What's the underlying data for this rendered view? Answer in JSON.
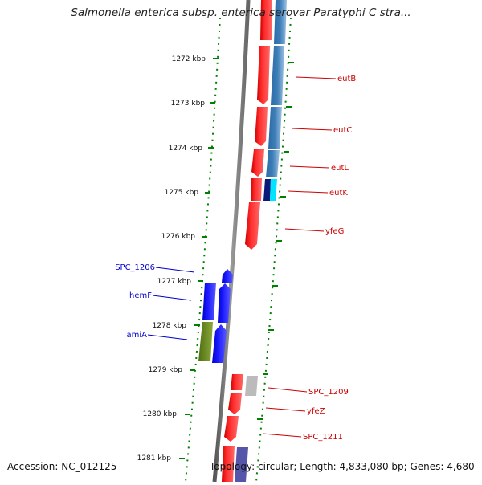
{
  "title": "Salmonella enterica subsp. enterica serovar Paratyphi C stra...",
  "footer": {
    "accession": "Accession: NC_012125",
    "summary": "Topology: circular; Length: 4,833,080 bp; Genes: 4,680"
  },
  "map": {
    "ticks": [
      "1272 kbp",
      "1273 kbp",
      "1274 kbp",
      "1275 kbp",
      "1276 kbp",
      "1277 kbp",
      "1278 kbp",
      "1279 kbp",
      "1280 kbp",
      "1281 kbp"
    ],
    "right_labels": [
      "eutB",
      "eutC",
      "eutL",
      "eutK",
      "yfeG",
      "SPC_1209",
      "yfeZ",
      "SPC_1211"
    ],
    "left_labels": [
      "SPC_1206",
      "hemF",
      "amiA"
    ],
    "colors": {
      "forward": "#ff0000",
      "reverse_blue": "#0000ff",
      "olive": "#6b8e23",
      "steel": "#3f7fb8",
      "cyan": "#00e5ff",
      "navy": "#0a1a7a",
      "grey": "#bbbbbb",
      "slate": "#5555aa",
      "tick_green": "#008000",
      "label_red": "#cc0000",
      "label_blue": "#0000cc",
      "backbone": "#777777"
    }
  }
}
